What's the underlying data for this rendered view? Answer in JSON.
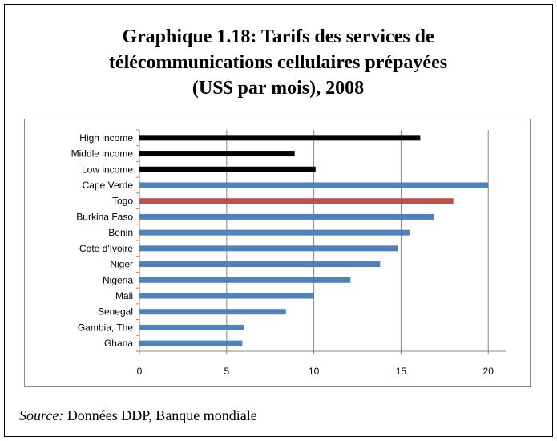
{
  "chart_data": {
    "type": "bar",
    "orientation": "horizontal",
    "title": [
      "Graphique 1.18: Tarifs des services de",
      "télécommunications cellulaires prépayées",
      "(US$ par mois), 2008"
    ],
    "categories": [
      "High income",
      "Middle income",
      "Low income",
      "Cape Verde",
      "Togo",
      "Burkina Faso",
      "Benin",
      "Cote d'Ivoire",
      "Niger",
      "Nigeria",
      "Mali",
      "Senegal",
      "Gambia, The",
      "Ghana"
    ],
    "values": [
      16.1,
      8.9,
      10.1,
      20.0,
      18.0,
      16.9,
      15.5,
      14.8,
      13.8,
      12.1,
      10.0,
      8.4,
      6.0,
      5.9
    ],
    "colors": [
      "#000000",
      "#000000",
      "#000000",
      "#4f81bd",
      "#c0504d",
      "#4f81bd",
      "#4f81bd",
      "#4f81bd",
      "#4f81bd",
      "#4f81bd",
      "#4f81bd",
      "#4f81bd",
      "#4f81bd",
      "#4f81bd"
    ],
    "xlim": [
      0,
      21
    ],
    "xticks": [
      0,
      5,
      10,
      15,
      20
    ],
    "grid": true,
    "source": {
      "label": "Source:",
      "text": "Données DDP, Banque mondiale"
    }
  }
}
